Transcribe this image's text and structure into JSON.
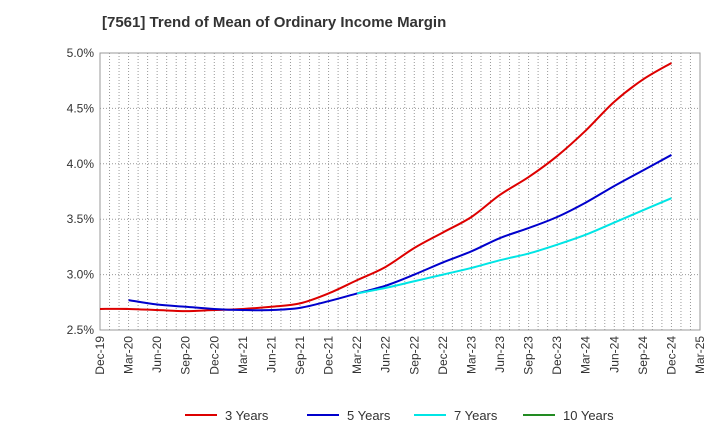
{
  "chart_data": {
    "type": "line",
    "title": "[7561]  Trend of Mean of Ordinary Income Margin",
    "xlabel": "",
    "ylabel": "",
    "ylim": [
      2.5,
      5.0
    ],
    "yticks": [
      "2.5%",
      "3.0%",
      "3.5%",
      "4.0%",
      "4.5%",
      "5.0%"
    ],
    "ytick_values": [
      2.5,
      3.0,
      3.5,
      4.0,
      4.5,
      5.0
    ],
    "x": [
      "Dec-19",
      "Mar-20",
      "Jun-20",
      "Sep-20",
      "Dec-20",
      "Mar-21",
      "Jun-21",
      "Sep-21",
      "Dec-21",
      "Mar-22",
      "Jun-22",
      "Sep-22",
      "Dec-22",
      "Mar-23",
      "Jun-23",
      "Sep-23",
      "Dec-23",
      "Mar-24",
      "Jun-24",
      "Sep-24",
      "Dec-24",
      "Mar-25"
    ],
    "grid": true,
    "legend_position": "bottom",
    "series": [
      {
        "name": "3 Years",
        "color": "#dd0000",
        "values": [
          2.69,
          2.69,
          2.68,
          2.67,
          2.68,
          2.69,
          2.71,
          2.74,
          2.83,
          2.95,
          3.07,
          3.24,
          3.38,
          3.52,
          3.72,
          3.88,
          4.07,
          4.3,
          4.56,
          4.76,
          4.91,
          null
        ]
      },
      {
        "name": "5 Years",
        "color": "#0000cc",
        "values": [
          null,
          2.77,
          2.73,
          2.71,
          2.69,
          2.68,
          2.68,
          2.7,
          2.76,
          2.83,
          2.9,
          3.0,
          3.11,
          3.21,
          3.33,
          3.42,
          3.52,
          3.65,
          3.8,
          3.94,
          4.08,
          null
        ]
      },
      {
        "name": "7 Years",
        "color": "#00e5e5",
        "values": [
          null,
          null,
          null,
          null,
          null,
          null,
          null,
          null,
          null,
          2.83,
          2.88,
          2.94,
          3.0,
          3.06,
          3.13,
          3.19,
          3.27,
          3.36,
          3.47,
          3.58,
          3.69,
          null
        ]
      },
      {
        "name": "10 Years",
        "color": "#228b22",
        "values": [
          null,
          null,
          null,
          null,
          null,
          null,
          null,
          null,
          null,
          null,
          null,
          null,
          null,
          null,
          null,
          null,
          null,
          null,
          null,
          null,
          null,
          null
        ]
      }
    ]
  }
}
